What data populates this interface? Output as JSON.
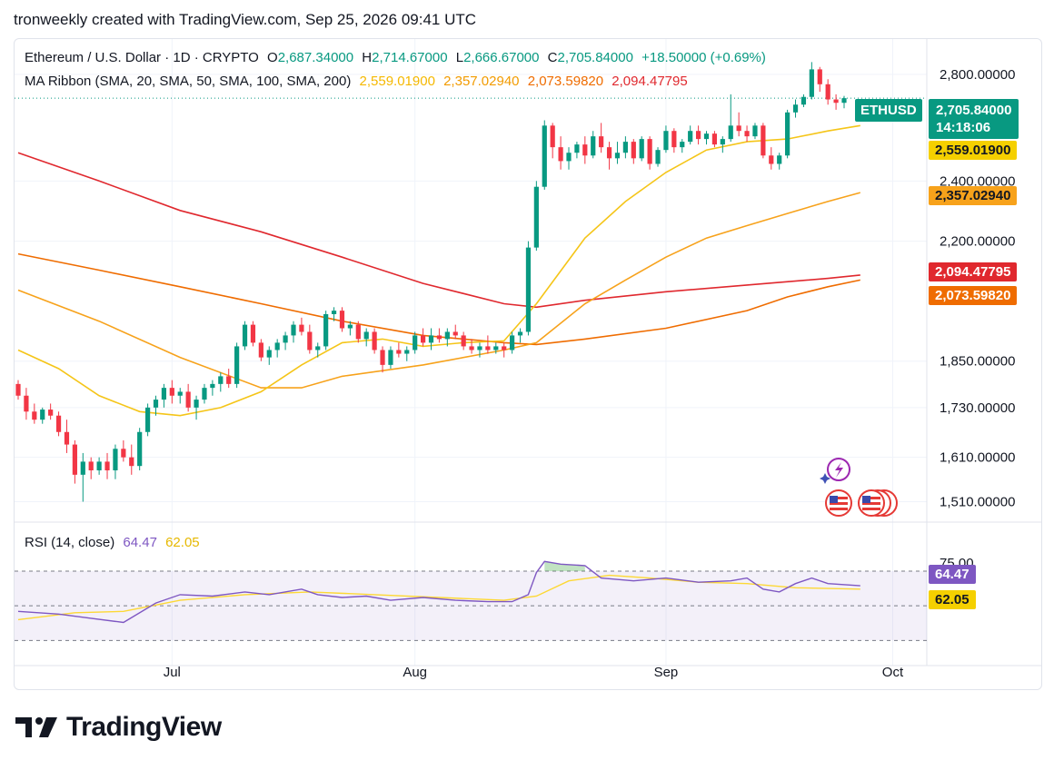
{
  "caption": "tronweekly created with TradingView.com, Sep 25, 2026 09:41 UTC",
  "legend": {
    "symbol": "Ethereum / U.S. Dollar · 1D · CRYPTO",
    "o_label": "O",
    "o_value": "2,687.34000",
    "h_label": "H",
    "h_value": "2,714.67000",
    "l_label": "L",
    "l_value": "2,666.67000",
    "c_label": "C",
    "c_value": "2,705.84000",
    "change": "+18.50000 (+0.69%)",
    "ma_label": "MA Ribbon (SMA, 20, SMA, 50, SMA, 100, SMA, 200)",
    "ma_values": [
      "2,559.01900",
      "2,357.02940",
      "2,073.59820",
      "2,094.47795"
    ]
  },
  "rsi_legend": {
    "label": "RSI (14, close)",
    "value": "64.47",
    "ma_value": "62.05"
  },
  "price_tag": {
    "symbol": "ETHUSD",
    "price": "2,705.84000",
    "countdown": "14:18:06"
  },
  "ma_tags": [
    "2,559.01900",
    "2,357.02940",
    "2,094.47795",
    "2,073.59820"
  ],
  "price_ticks": [
    "2,800.00000",
    "2,400.00000",
    "2,200.00000",
    "1,850.00000",
    "1,730.00000",
    "1,610.00000",
    "1,510.00000"
  ],
  "rsi_ticks": [
    "75.00"
  ],
  "rsi_tags": [
    "64.47",
    "62.05"
  ],
  "x_labels": [
    "Jul",
    "Aug",
    "Sep",
    "Oct"
  ],
  "logo_text": "TradingView",
  "colors": {
    "up": "#089981",
    "down": "#f23645",
    "sma20": "#f5c518",
    "sma50": "#f7a21b",
    "sma100": "#ef6c00",
    "sma200": "#e0282e",
    "rsi": "#7e57c2",
    "rsi_ma": "#fdd835"
  },
  "chart_data": {
    "type": "candlestick",
    "x_range": [
      "2026-06-12",
      "2026-10-05"
    ],
    "ylim": [
      1470,
      2870
    ],
    "y_scale": "log",
    "candles": [
      [
        1790,
        1800,
        1750,
        1760
      ],
      [
        1760,
        1780,
        1700,
        1720
      ],
      [
        1720,
        1740,
        1690,
        1700
      ],
      [
        1700,
        1730,
        1690,
        1725
      ],
      [
        1725,
        1740,
        1700,
        1710
      ],
      [
        1710,
        1720,
        1660,
        1670
      ],
      [
        1670,
        1700,
        1620,
        1640
      ],
      [
        1640,
        1650,
        1550,
        1570
      ],
      [
        1570,
        1620,
        1510,
        1600
      ],
      [
        1600,
        1610,
        1560,
        1580
      ],
      [
        1580,
        1610,
        1570,
        1600
      ],
      [
        1600,
        1620,
        1560,
        1580
      ],
      [
        1580,
        1640,
        1560,
        1630
      ],
      [
        1630,
        1650,
        1600,
        1610
      ],
      [
        1610,
        1640,
        1570,
        1590
      ],
      [
        1590,
        1680,
        1580,
        1670
      ],
      [
        1670,
        1740,
        1660,
        1730
      ],
      [
        1730,
        1760,
        1710,
        1750
      ],
      [
        1750,
        1790,
        1730,
        1780
      ],
      [
        1780,
        1800,
        1740,
        1760
      ],
      [
        1760,
        1780,
        1740,
        1770
      ],
      [
        1770,
        1790,
        1720,
        1730
      ],
      [
        1730,
        1760,
        1700,
        1750
      ],
      [
        1750,
        1790,
        1740,
        1780
      ],
      [
        1780,
        1800,
        1760,
        1790
      ],
      [
        1790,
        1820,
        1770,
        1810
      ],
      [
        1810,
        1830,
        1780,
        1790
      ],
      [
        1790,
        1900,
        1780,
        1890
      ],
      [
        1890,
        1960,
        1880,
        1950
      ],
      [
        1950,
        1960,
        1890,
        1900
      ],
      [
        1900,
        1910,
        1850,
        1860
      ],
      [
        1860,
        1890,
        1840,
        1880
      ],
      [
        1880,
        1910,
        1860,
        1900
      ],
      [
        1900,
        1930,
        1880,
        1920
      ],
      [
        1920,
        1960,
        1900,
        1950
      ],
      [
        1950,
        1970,
        1920,
        1930
      ],
      [
        1930,
        1950,
        1870,
        1880
      ],
      [
        1880,
        1900,
        1860,
        1890
      ],
      [
        1890,
        1990,
        1880,
        1980
      ],
      [
        1980,
        2000,
        1960,
        1990
      ],
      [
        1990,
        2000,
        1930,
        1940
      ],
      [
        1940,
        1960,
        1920,
        1950
      ],
      [
        1950,
        1960,
        1900,
        1910
      ],
      [
        1910,
        1940,
        1890,
        1930
      ],
      [
        1930,
        1940,
        1870,
        1880
      ],
      [
        1880,
        1890,
        1820,
        1840
      ],
      [
        1840,
        1890,
        1830,
        1880
      ],
      [
        1880,
        1900,
        1860,
        1870
      ],
      [
        1870,
        1890,
        1850,
        1880
      ],
      [
        1880,
        1930,
        1870,
        1920
      ],
      [
        1920,
        1940,
        1890,
        1900
      ],
      [
        1900,
        1940,
        1880,
        1920
      ],
      [
        1920,
        1940,
        1900,
        1910
      ],
      [
        1910,
        1940,
        1890,
        1930
      ],
      [
        1930,
        1950,
        1910,
        1920
      ],
      [
        1920,
        1930,
        1880,
        1890
      ],
      [
        1890,
        1910,
        1870,
        1880
      ],
      [
        1880,
        1900,
        1860,
        1890
      ],
      [
        1890,
        1920,
        1870,
        1880
      ],
      [
        1880,
        1900,
        1870,
        1890
      ],
      [
        1890,
        1900,
        1860,
        1880
      ],
      [
        1880,
        1930,
        1870,
        1920
      ],
      [
        1920,
        1940,
        1900,
        1930
      ],
      [
        1930,
        2200,
        1920,
        2180
      ],
      [
        2180,
        2400,
        2170,
        2380
      ],
      [
        2380,
        2620,
        2370,
        2600
      ],
      [
        2600,
        2610,
        2480,
        2520
      ],
      [
        2520,
        2560,
        2440,
        2470
      ],
      [
        2470,
        2520,
        2440,
        2500
      ],
      [
        2500,
        2540,
        2480,
        2530
      ],
      [
        2530,
        2560,
        2460,
        2490
      ],
      [
        2490,
        2580,
        2480,
        2560
      ],
      [
        2560,
        2610,
        2500,
        2520
      ],
      [
        2520,
        2540,
        2440,
        2480
      ],
      [
        2480,
        2540,
        2460,
        2500
      ],
      [
        2500,
        2560,
        2480,
        2540
      ],
      [
        2540,
        2550,
        2460,
        2480
      ],
      [
        2480,
        2560,
        2470,
        2550
      ],
      [
        2550,
        2560,
        2440,
        2460
      ],
      [
        2460,
        2520,
        2450,
        2510
      ],
      [
        2510,
        2600,
        2500,
        2580
      ],
      [
        2580,
        2590,
        2500,
        2520
      ],
      [
        2520,
        2550,
        2500,
        2540
      ],
      [
        2540,
        2600,
        2530,
        2580
      ],
      [
        2580,
        2600,
        2530,
        2550
      ],
      [
        2550,
        2580,
        2530,
        2570
      ],
      [
        2570,
        2580,
        2520,
        2530
      ],
      [
        2530,
        2560,
        2500,
        2550
      ],
      [
        2550,
        2720,
        2540,
        2600
      ],
      [
        2600,
        2650,
        2560,
        2580
      ],
      [
        2580,
        2600,
        2540,
        2560
      ],
      [
        2560,
        2610,
        2550,
        2600
      ],
      [
        2600,
        2610,
        2480,
        2490
      ],
      [
        2490,
        2520,
        2440,
        2460
      ],
      [
        2460,
        2500,
        2440,
        2490
      ],
      [
        2490,
        2660,
        2480,
        2650
      ],
      [
        2650,
        2700,
        2630,
        2680
      ],
      [
        2680,
        2720,
        2670,
        2710
      ],
      [
        2710,
        2850,
        2700,
        2820
      ],
      [
        2820,
        2830,
        2730,
        2760
      ],
      [
        2760,
        2780,
        2680,
        2700
      ],
      [
        2700,
        2720,
        2660,
        2687
      ],
      [
        2687,
        2714,
        2666,
        2705
      ]
    ],
    "sma20": {
      "name": "SMA 20",
      "values": [
        [
          0,
          1880
        ],
        [
          5,
          1830
        ],
        [
          10,
          1760
        ],
        [
          15,
          1720
        ],
        [
          20,
          1710
        ],
        [
          25,
          1730
        ],
        [
          30,
          1770
        ],
        [
          35,
          1840
        ],
        [
          40,
          1900
        ],
        [
          45,
          1910
        ],
        [
          50,
          1890
        ],
        [
          55,
          1900
        ],
        [
          60,
          1905
        ],
        [
          64,
          2010
        ],
        [
          70,
          2210
        ],
        [
          75,
          2330
        ],
        [
          80,
          2430
        ],
        [
          85,
          2510
        ],
        [
          90,
          2540
        ],
        [
          95,
          2550
        ],
        [
          100,
          2580
        ],
        [
          104,
          2600
        ]
      ]
    },
    "sma50": {
      "name": "SMA 50",
      "values": [
        [
          0,
          2050
        ],
        [
          10,
          1960
        ],
        [
          20,
          1860
        ],
        [
          30,
          1780
        ],
        [
          35,
          1780
        ],
        [
          40,
          1810
        ],
        [
          50,
          1840
        ],
        [
          60,
          1880
        ],
        [
          64,
          1900
        ],
        [
          70,
          2010
        ],
        [
          75,
          2080
        ],
        [
          80,
          2150
        ],
        [
          85,
          2210
        ],
        [
          90,
          2250
        ],
        [
          95,
          2290
        ],
        [
          100,
          2330
        ],
        [
          104,
          2360
        ]
      ]
    },
    "sma100": {
      "name": "SMA 100",
      "values": [
        [
          0,
          2160
        ],
        [
          10,
          2110
        ],
        [
          20,
          2060
        ],
        [
          30,
          2010
        ],
        [
          40,
          1960
        ],
        [
          50,
          1920
        ],
        [
          60,
          1900
        ],
        [
          64,
          1895
        ],
        [
          70,
          1910
        ],
        [
          80,
          1940
        ],
        [
          90,
          1990
        ],
        [
          95,
          2030
        ],
        [
          100,
          2060
        ],
        [
          104,
          2080
        ]
      ]
    },
    "sma200": {
      "name": "SMA 200",
      "values": [
        [
          0,
          2500
        ],
        [
          10,
          2400
        ],
        [
          20,
          2300
        ],
        [
          30,
          2230
        ],
        [
          40,
          2150
        ],
        [
          50,
          2070
        ],
        [
          60,
          2010
        ],
        [
          64,
          2000
        ],
        [
          70,
          2020
        ],
        [
          80,
          2045
        ],
        [
          90,
          2065
        ],
        [
          100,
          2085
        ],
        [
          104,
          2095
        ]
      ]
    },
    "rsi": {
      "name": "RSI",
      "ylim": [
        20,
        92
      ],
      "line": [
        [
          0,
          46
        ],
        [
          5,
          44
        ],
        [
          9,
          41
        ],
        [
          13,
          38
        ],
        [
          17,
          52
        ],
        [
          20,
          58
        ],
        [
          24,
          57
        ],
        [
          28,
          60
        ],
        [
          31,
          58
        ],
        [
          35,
          62
        ],
        [
          37,
          58
        ],
        [
          40,
          56
        ],
        [
          43,
          57
        ],
        [
          46,
          54
        ],
        [
          50,
          56
        ],
        [
          54,
          54
        ],
        [
          58,
          53
        ],
        [
          61,
          53
        ],
        [
          63,
          58
        ],
        [
          64,
          74
        ],
        [
          65,
          82
        ],
        [
          67,
          80
        ],
        [
          70,
          79
        ],
        [
          72,
          70
        ],
        [
          76,
          68
        ],
        [
          80,
          70
        ],
        [
          84,
          67
        ],
        [
          88,
          68
        ],
        [
          90,
          70
        ],
        [
          92,
          62
        ],
        [
          94,
          60
        ],
        [
          96,
          66
        ],
        [
          98,
          70
        ],
        [
          100,
          66
        ],
        [
          104,
          64.47
        ]
      ],
      "ma": [
        [
          0,
          40
        ],
        [
          7,
          45
        ],
        [
          13,
          46
        ],
        [
          20,
          54
        ],
        [
          28,
          58
        ],
        [
          36,
          60
        ],
        [
          44,
          58
        ],
        [
          52,
          56
        ],
        [
          60,
          54
        ],
        [
          64,
          57
        ],
        [
          68,
          68
        ],
        [
          73,
          72
        ],
        [
          78,
          70
        ],
        [
          84,
          67
        ],
        [
          90,
          66
        ],
        [
          96,
          63
        ],
        [
          104,
          62.05
        ]
      ],
      "upper": 75,
      "lower": 25
    }
  }
}
